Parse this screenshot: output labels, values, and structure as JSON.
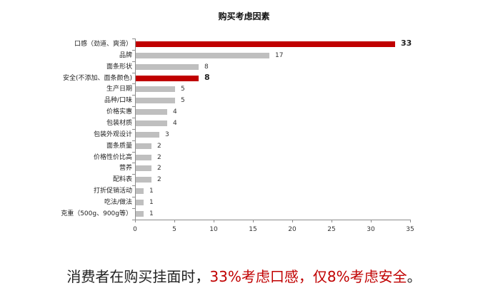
{
  "chart_data": {
    "type": "bar",
    "orientation": "horizontal",
    "title": "购买考虑因素",
    "xlabel": "",
    "ylabel": "",
    "xlim": [
      0,
      35
    ],
    "xticks": [
      0,
      5,
      10,
      15,
      20,
      25,
      30,
      35
    ],
    "grid": false,
    "legend": null,
    "categories": [
      "口感（劲道、爽滑）",
      "品牌",
      "面条形状",
      "安全(不添加、面条颜色)",
      "生产日期",
      "品种/口味",
      "价格实惠",
      "包装材质",
      "包装外观设计",
      "面条质量",
      "价格性价比高",
      "营养",
      "配料表",
      "打折促销活动",
      "吃法/做法",
      "克重（500g、900g等）"
    ],
    "values": [
      33,
      17,
      8,
      8,
      5,
      5,
      4,
      4,
      3,
      2,
      2,
      2,
      2,
      1,
      1,
      1
    ],
    "highlighted": [
      "口感（劲道、爽滑）",
      "安全(不添加、面条颜色)"
    ],
    "colors": {
      "highlight": "#c00000",
      "default": "#bfbfbf"
    }
  },
  "chart": {
    "title": "购买考虑因素",
    "xticks": [
      "0",
      "5",
      "10",
      "15",
      "20",
      "25",
      "30",
      "35"
    ],
    "rows": [
      {
        "label": "口感（劲道、爽滑）",
        "value": 33,
        "value_label": "33",
        "highlight": true
      },
      {
        "label": "品牌",
        "value": 17,
        "value_label": "17",
        "highlight": false
      },
      {
        "label": "面条形状",
        "value": 8,
        "value_label": "8",
        "highlight": false
      },
      {
        "label": "安全(不添加、面条颜色)",
        "value": 8,
        "value_label": "8",
        "highlight": true
      },
      {
        "label": "生产日期",
        "value": 5,
        "value_label": "5",
        "highlight": false
      },
      {
        "label": "品种/口味",
        "value": 5,
        "value_label": "5",
        "highlight": false
      },
      {
        "label": "价格实惠",
        "value": 4,
        "value_label": "4",
        "highlight": false
      },
      {
        "label": "包装材质",
        "value": 4,
        "value_label": "4",
        "highlight": false
      },
      {
        "label": "包装外观设计",
        "value": 3,
        "value_label": "3",
        "highlight": false
      },
      {
        "label": "面条质量",
        "value": 2,
        "value_label": "2",
        "highlight": false
      },
      {
        "label": "价格性价比高",
        "value": 2,
        "value_label": "2",
        "highlight": false
      },
      {
        "label": "营养",
        "value": 2,
        "value_label": "2",
        "highlight": false
      },
      {
        "label": "配料表",
        "value": 2,
        "value_label": "2",
        "highlight": false
      },
      {
        "label": "打折促销活动",
        "value": 1,
        "value_label": "1",
        "highlight": false
      },
      {
        "label": "吃法/做法",
        "value": 1,
        "value_label": "1",
        "highlight": false
      },
      {
        "label": "克重（500g、900g等）",
        "value": 1,
        "value_label": "1",
        "highlight": false
      }
    ]
  },
  "caption": {
    "part1": "消费者在购买挂面时，",
    "part2_red": "33%考虑口感，仅8%考虑安全",
    "part3": "。"
  },
  "colors": {
    "highlight": "#c00000",
    "default_bar": "#bfbfbf",
    "axis": "#8c8c8c"
  }
}
